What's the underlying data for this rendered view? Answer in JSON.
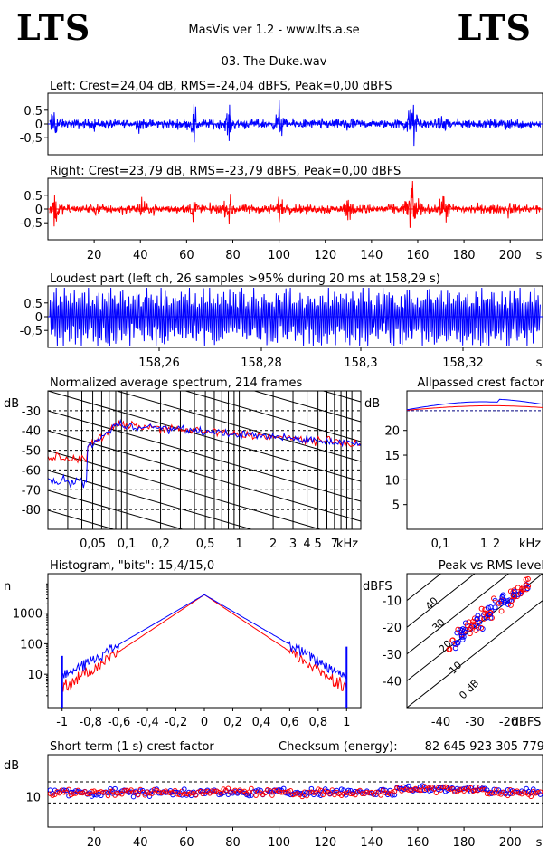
{
  "header": {
    "logo_left": "LTS",
    "logo_right": "LTS",
    "app_title": "MasVis ver 1.2 - www.lts.a.se",
    "file_title": "03. The Duke.wav"
  },
  "colors": {
    "left_channel": "#0000ff",
    "right_channel": "#ff0000"
  },
  "chart_data": [
    {
      "id": "waveform-left",
      "type": "line",
      "title": "Left: Crest=24,04 dB, RMS=-24,04 dBFS, Peak=0,00 dBFS",
      "yticks": [
        "0.5",
        "0",
        "-0,5"
      ],
      "ylim": [
        -1,
        1
      ]
    },
    {
      "id": "waveform-right",
      "type": "line",
      "title": "Right: Crest=23,79 dB, RMS=-23,79 dBFS, Peak=0,00 dBFS",
      "yticks": [
        "0.5",
        "0",
        "-0,5"
      ],
      "ylim": [
        -1,
        1
      ],
      "xticks": [
        "20",
        "40",
        "60",
        "80",
        "100",
        "120",
        "140",
        "160",
        "180",
        "200"
      ],
      "xunit": "s",
      "xlim": [
        0,
        214
      ]
    },
    {
      "id": "loudest-part",
      "type": "line",
      "title": "Loudest part (left  ch, 26 samples >95% during 20 ms at 158,29 s)",
      "yticks": [
        "0.5",
        "0",
        "-0,5"
      ],
      "ylim": [
        -1,
        1
      ],
      "xticks": [
        "158,26",
        "158,28",
        "158,3",
        "158,32"
      ],
      "xunit": "s"
    },
    {
      "id": "spectrum",
      "type": "line",
      "title": "Normalized average spectrum, 214 frames",
      "ylabel": "dB",
      "yticks": [
        "-30",
        "-40",
        "-50",
        "-60",
        "-70",
        "-80"
      ],
      "xticks": [
        "0,05",
        "0,1",
        "0,2",
        "0,5",
        "1",
        "2",
        "3",
        "4",
        "5",
        "7"
      ],
      "xunit": "kHz",
      "xscale": "log",
      "ylim": [
        -90,
        -20
      ]
    },
    {
      "id": "allpassed-crest",
      "type": "line",
      "title": "Allpassed crest factor",
      "ylabel": "dB",
      "yticks": [
        "20",
        "15",
        "10",
        "5"
      ],
      "ylim": [
        0,
        28
      ],
      "xticks": [
        "0,1",
        "1",
        "2"
      ],
      "xunit": "kHz",
      "xscale": "log"
    },
    {
      "id": "histogram",
      "type": "line",
      "title": "Histogram, \"bits\": 15,4/15,0",
      "ylabel": "n",
      "yscale": "log",
      "yticks": [
        "1000",
        "100",
        "10"
      ],
      "xticks": [
        "-1",
        "-0,8",
        "-0,6",
        "-0,4",
        "-0,2",
        "0",
        "0,2",
        "0,4",
        "0,6",
        "0,8",
        "1"
      ],
      "xlim": [
        -1.1,
        1.1
      ]
    },
    {
      "id": "peak-vs-rms",
      "type": "scatter",
      "title": "Peak vs RMS level",
      "ylabel": "dBFS",
      "xlabel": "dBFS",
      "yticks": [
        "-10",
        "-20",
        "-30",
        "-40"
      ],
      "xticks": [
        "-40",
        "-30",
        "-20"
      ],
      "diagonals": [
        "40",
        "30",
        "20",
        "10",
        "0 dB"
      ],
      "xlim": [
        -50,
        -10
      ],
      "ylim": [
        -50,
        0
      ]
    },
    {
      "id": "short-term-crest",
      "type": "scatter",
      "title": "Short term (1 s) crest factor",
      "checksum_label": "Checksum (energy):",
      "checksum_value": "82 645 923 305 779",
      "ylabel": "dB",
      "yticks": [
        "10"
      ],
      "xticks": [
        "20",
        "40",
        "60",
        "80",
        "100",
        "120",
        "140",
        "160",
        "180",
        "200"
      ],
      "xunit": "s",
      "xlim": [
        0,
        214
      ]
    }
  ]
}
